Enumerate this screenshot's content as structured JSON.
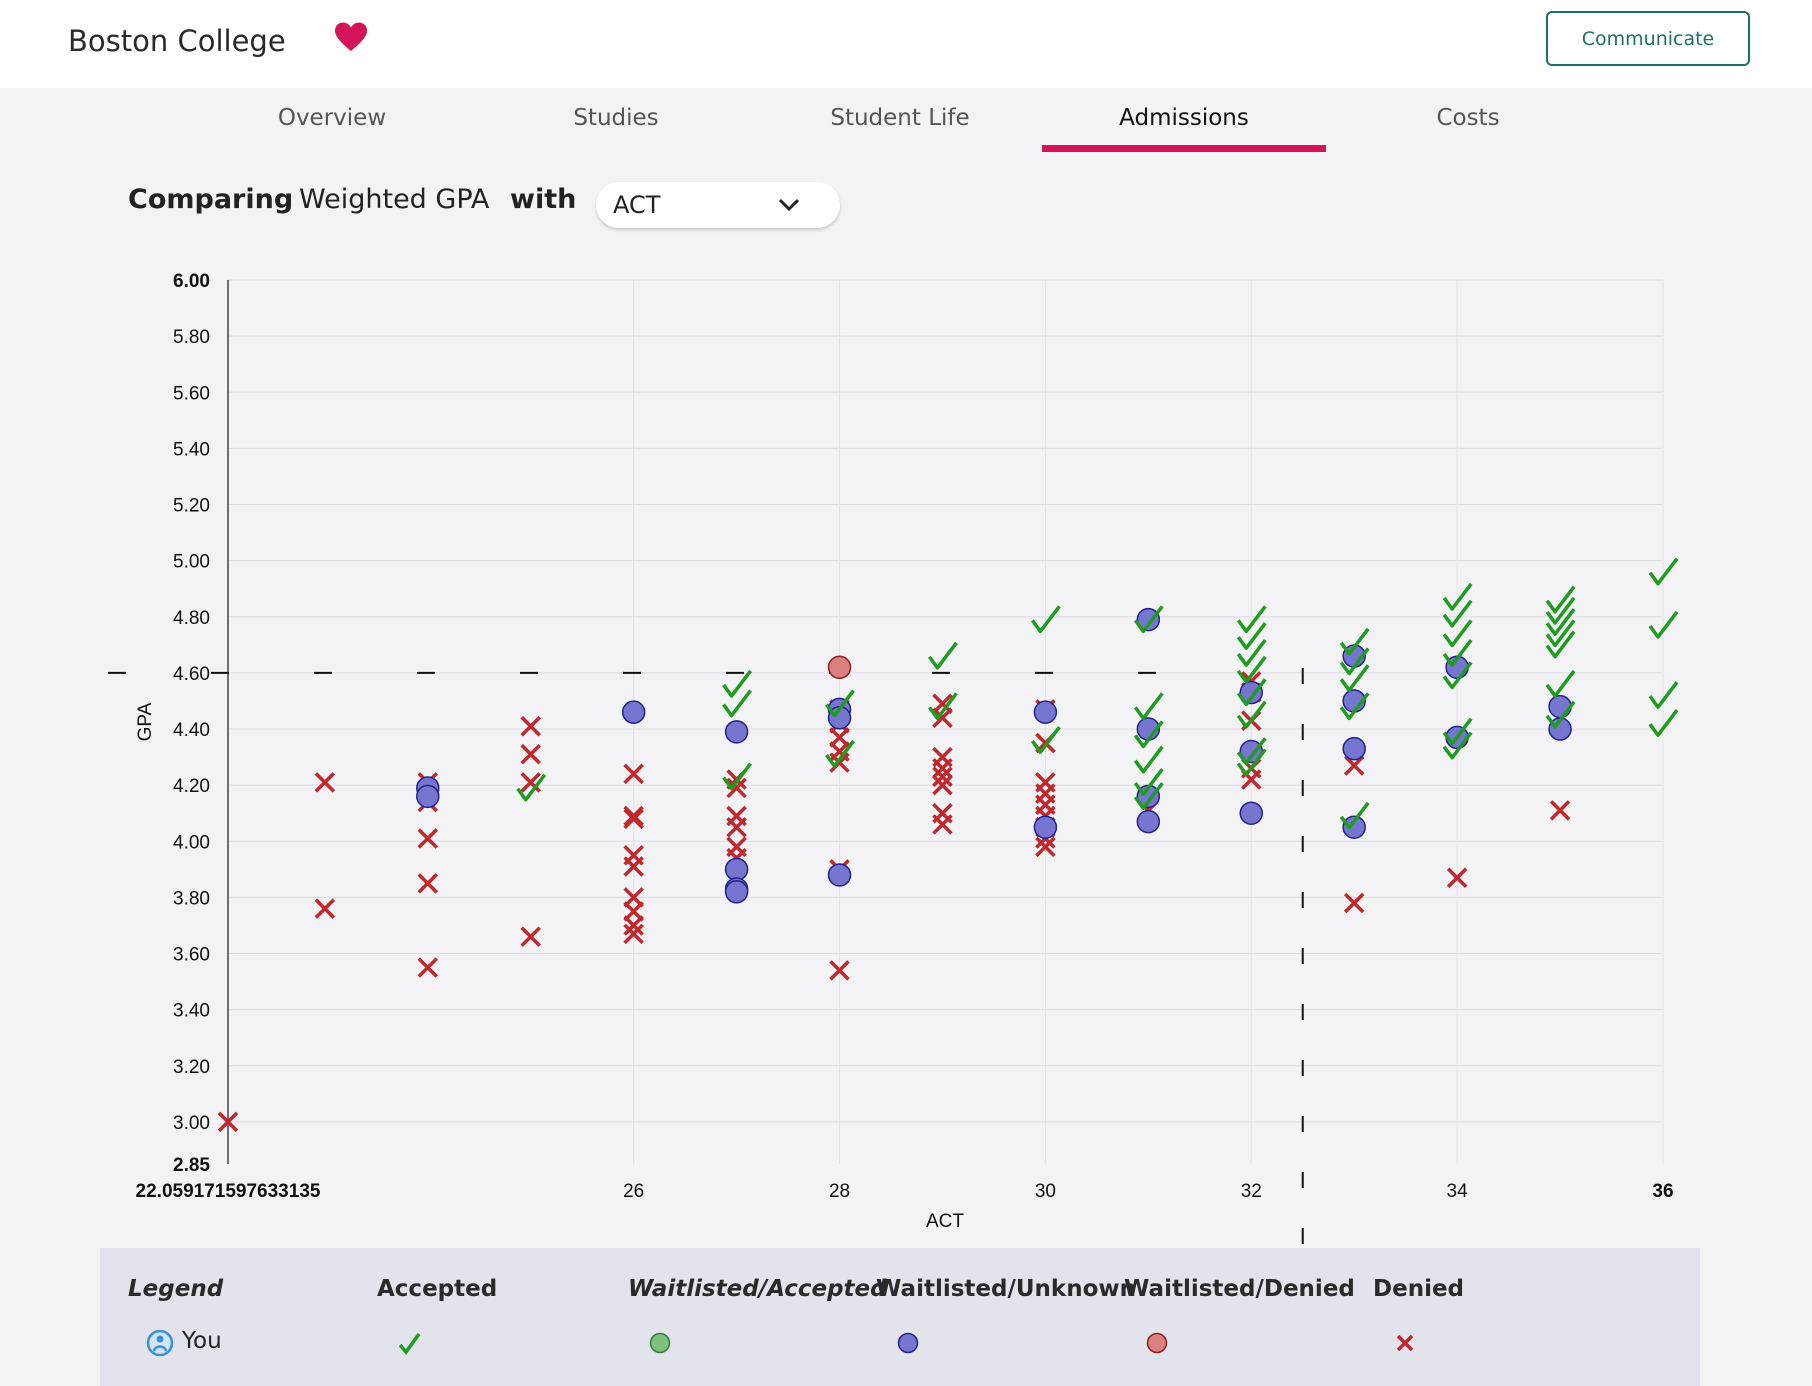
{
  "header": {
    "school_name": "Boston College",
    "communicate_label": "Communicate",
    "accent_color": "#d4145a",
    "button_color": "#1e6f6c"
  },
  "tabs": [
    {
      "label": "Overview",
      "active": false
    },
    {
      "label": "Studies",
      "active": false
    },
    {
      "label": "Student Life",
      "active": false
    },
    {
      "label": "Admissions",
      "active": true
    },
    {
      "label": "Costs",
      "active": false
    }
  ],
  "compare": {
    "comparing_label": "Comparing",
    "metric": "Weighted GPA",
    "with_label": "with",
    "selected": "ACT"
  },
  "legend": {
    "title": "Legend",
    "you_label": "You",
    "categories": [
      "Accepted",
      "Waitlisted/Accepted",
      "Waitlisted/Unknown",
      "Waitlisted/Denied",
      "Denied"
    ],
    "colors": {
      "accepted": "#1f9b1f",
      "waitlisted_accepted": "#7cc27c",
      "waitlisted_unknown": "#7676d0",
      "waitlisted_denied": "#d98080",
      "denied": "#c0282d"
    }
  },
  "chart_data": {
    "type": "scatter",
    "xlabel": "ACT",
    "ylabel": "GPA",
    "xlim": [
      22.059171597633135,
      36
    ],
    "ylim": [
      2.85,
      6.0
    ],
    "x_ticks": [
      "22.059171597633135",
      "26",
      "28",
      "30",
      "32",
      "34",
      "36"
    ],
    "y_ticks": [
      "6.00",
      "5.80",
      "5.60",
      "5.40",
      "5.20",
      "5.00",
      "4.80",
      "4.60",
      "4.40",
      "4.20",
      "4.00",
      "3.80",
      "3.60",
      "3.40",
      "3.20",
      "3.00",
      "2.85"
    ],
    "grid": true,
    "reference_lines": [
      {
        "axis": "x",
        "value": 32.5,
        "style": "dashed"
      },
      {
        "axis": "y",
        "value": 4.6,
        "style": "dashed"
      }
    ],
    "series": [
      {
        "name": "Accepted",
        "points": [
          [
            25,
            4.18
          ],
          [
            27,
            4.55
          ],
          [
            27,
            4.48
          ],
          [
            27,
            4.22
          ],
          [
            28,
            4.48
          ],
          [
            28,
            4.3
          ],
          [
            29,
            4.65
          ],
          [
            29,
            4.47
          ],
          [
            30,
            4.78
          ],
          [
            30,
            4.35
          ],
          [
            31,
            4.78
          ],
          [
            31,
            4.47
          ],
          [
            31,
            4.37
          ],
          [
            31,
            4.28
          ],
          [
            31,
            4.2
          ],
          [
            31,
            4.15
          ],
          [
            32,
            4.78
          ],
          [
            32,
            4.72
          ],
          [
            32,
            4.66
          ],
          [
            32,
            4.6
          ],
          [
            32,
            4.52
          ],
          [
            32,
            4.44
          ],
          [
            32,
            4.31
          ],
          [
            32,
            4.27
          ],
          [
            33,
            4.7
          ],
          [
            33,
            4.63
          ],
          [
            33,
            4.57
          ],
          [
            33,
            4.47
          ],
          [
            33,
            4.08
          ],
          [
            34,
            4.86
          ],
          [
            34,
            4.8
          ],
          [
            34,
            4.73
          ],
          [
            34,
            4.66
          ],
          [
            34,
            4.58
          ],
          [
            34,
            4.38
          ],
          [
            34,
            4.33
          ],
          [
            35,
            4.85
          ],
          [
            35,
            4.81
          ],
          [
            35,
            4.77
          ],
          [
            35,
            4.73
          ],
          [
            35,
            4.69
          ],
          [
            35,
            4.55
          ],
          [
            35,
            4.44
          ],
          [
            36,
            4.95
          ],
          [
            36,
            4.76
          ],
          [
            36,
            4.51
          ],
          [
            36,
            4.41
          ]
        ]
      },
      {
        "name": "Waitlisted/Unknown",
        "points": [
          [
            24,
            4.19
          ],
          [
            24,
            4.16
          ],
          [
            26,
            4.46
          ],
          [
            27,
            4.39
          ],
          [
            27,
            3.9
          ],
          [
            27,
            3.83
          ],
          [
            27,
            3.82
          ],
          [
            28,
            4.47
          ],
          [
            28,
            4.44
          ],
          [
            28,
            3.88
          ],
          [
            30,
            4.46
          ],
          [
            30,
            4.05
          ],
          [
            31,
            4.79
          ],
          [
            31,
            4.4
          ],
          [
            31,
            4.16
          ],
          [
            31,
            4.07
          ],
          [
            32,
            4.53
          ],
          [
            32,
            4.32
          ],
          [
            32,
            4.1
          ],
          [
            33,
            4.66
          ],
          [
            33,
            4.5
          ],
          [
            33,
            4.33
          ],
          [
            33,
            4.05
          ],
          [
            34,
            4.62
          ],
          [
            34,
            4.37
          ],
          [
            35,
            4.48
          ],
          [
            35,
            4.4
          ]
        ]
      },
      {
        "name": "Waitlisted/Denied",
        "points": [
          [
            28,
            4.62
          ]
        ]
      },
      {
        "name": "Denied",
        "points": [
          [
            22.059,
            3.0
          ],
          [
            23,
            4.21
          ],
          [
            23,
            3.76
          ],
          [
            24,
            4.21
          ],
          [
            24,
            4.14
          ],
          [
            24,
            4.01
          ],
          [
            24,
            3.85
          ],
          [
            24,
            3.55
          ],
          [
            25,
            4.41
          ],
          [
            25,
            4.31
          ],
          [
            25,
            4.21
          ],
          [
            25,
            3.66
          ],
          [
            26,
            4.24
          ],
          [
            26,
            4.09
          ],
          [
            26,
            4.08
          ],
          [
            26,
            3.95
          ],
          [
            26,
            3.91
          ],
          [
            26,
            3.8
          ],
          [
            26,
            3.75
          ],
          [
            26,
            3.7
          ],
          [
            26,
            3.67
          ],
          [
            27,
            4.22
          ],
          [
            27,
            4.19
          ],
          [
            27,
            4.09
          ],
          [
            27,
            4.05
          ],
          [
            27,
            3.98
          ],
          [
            27,
            3.94
          ],
          [
            28,
            4.47
          ],
          [
            28,
            4.42
          ],
          [
            28,
            4.37
          ],
          [
            28,
            4.32
          ],
          [
            28,
            4.28
          ],
          [
            28,
            3.9
          ],
          [
            28,
            3.54
          ],
          [
            29,
            4.49
          ],
          [
            29,
            4.44
          ],
          [
            29,
            4.3
          ],
          [
            29,
            4.26
          ],
          [
            29,
            4.23
          ],
          [
            29,
            4.2
          ],
          [
            29,
            4.1
          ],
          [
            29,
            4.06
          ],
          [
            30,
            4.47
          ],
          [
            30,
            4.35
          ],
          [
            30,
            4.21
          ],
          [
            30,
            4.17
          ],
          [
            30,
            4.13
          ],
          [
            30,
            4.09
          ],
          [
            30,
            4.05
          ],
          [
            30,
            4.01
          ],
          [
            30,
            3.98
          ],
          [
            31,
            4.11
          ],
          [
            32,
            4.57
          ],
          [
            32,
            4.53
          ],
          [
            32,
            4.43
          ],
          [
            32,
            4.26
          ],
          [
            32,
            4.22
          ],
          [
            33,
            4.27
          ],
          [
            33,
            3.78
          ],
          [
            34,
            3.87
          ],
          [
            35,
            4.11
          ]
        ]
      }
    ]
  }
}
